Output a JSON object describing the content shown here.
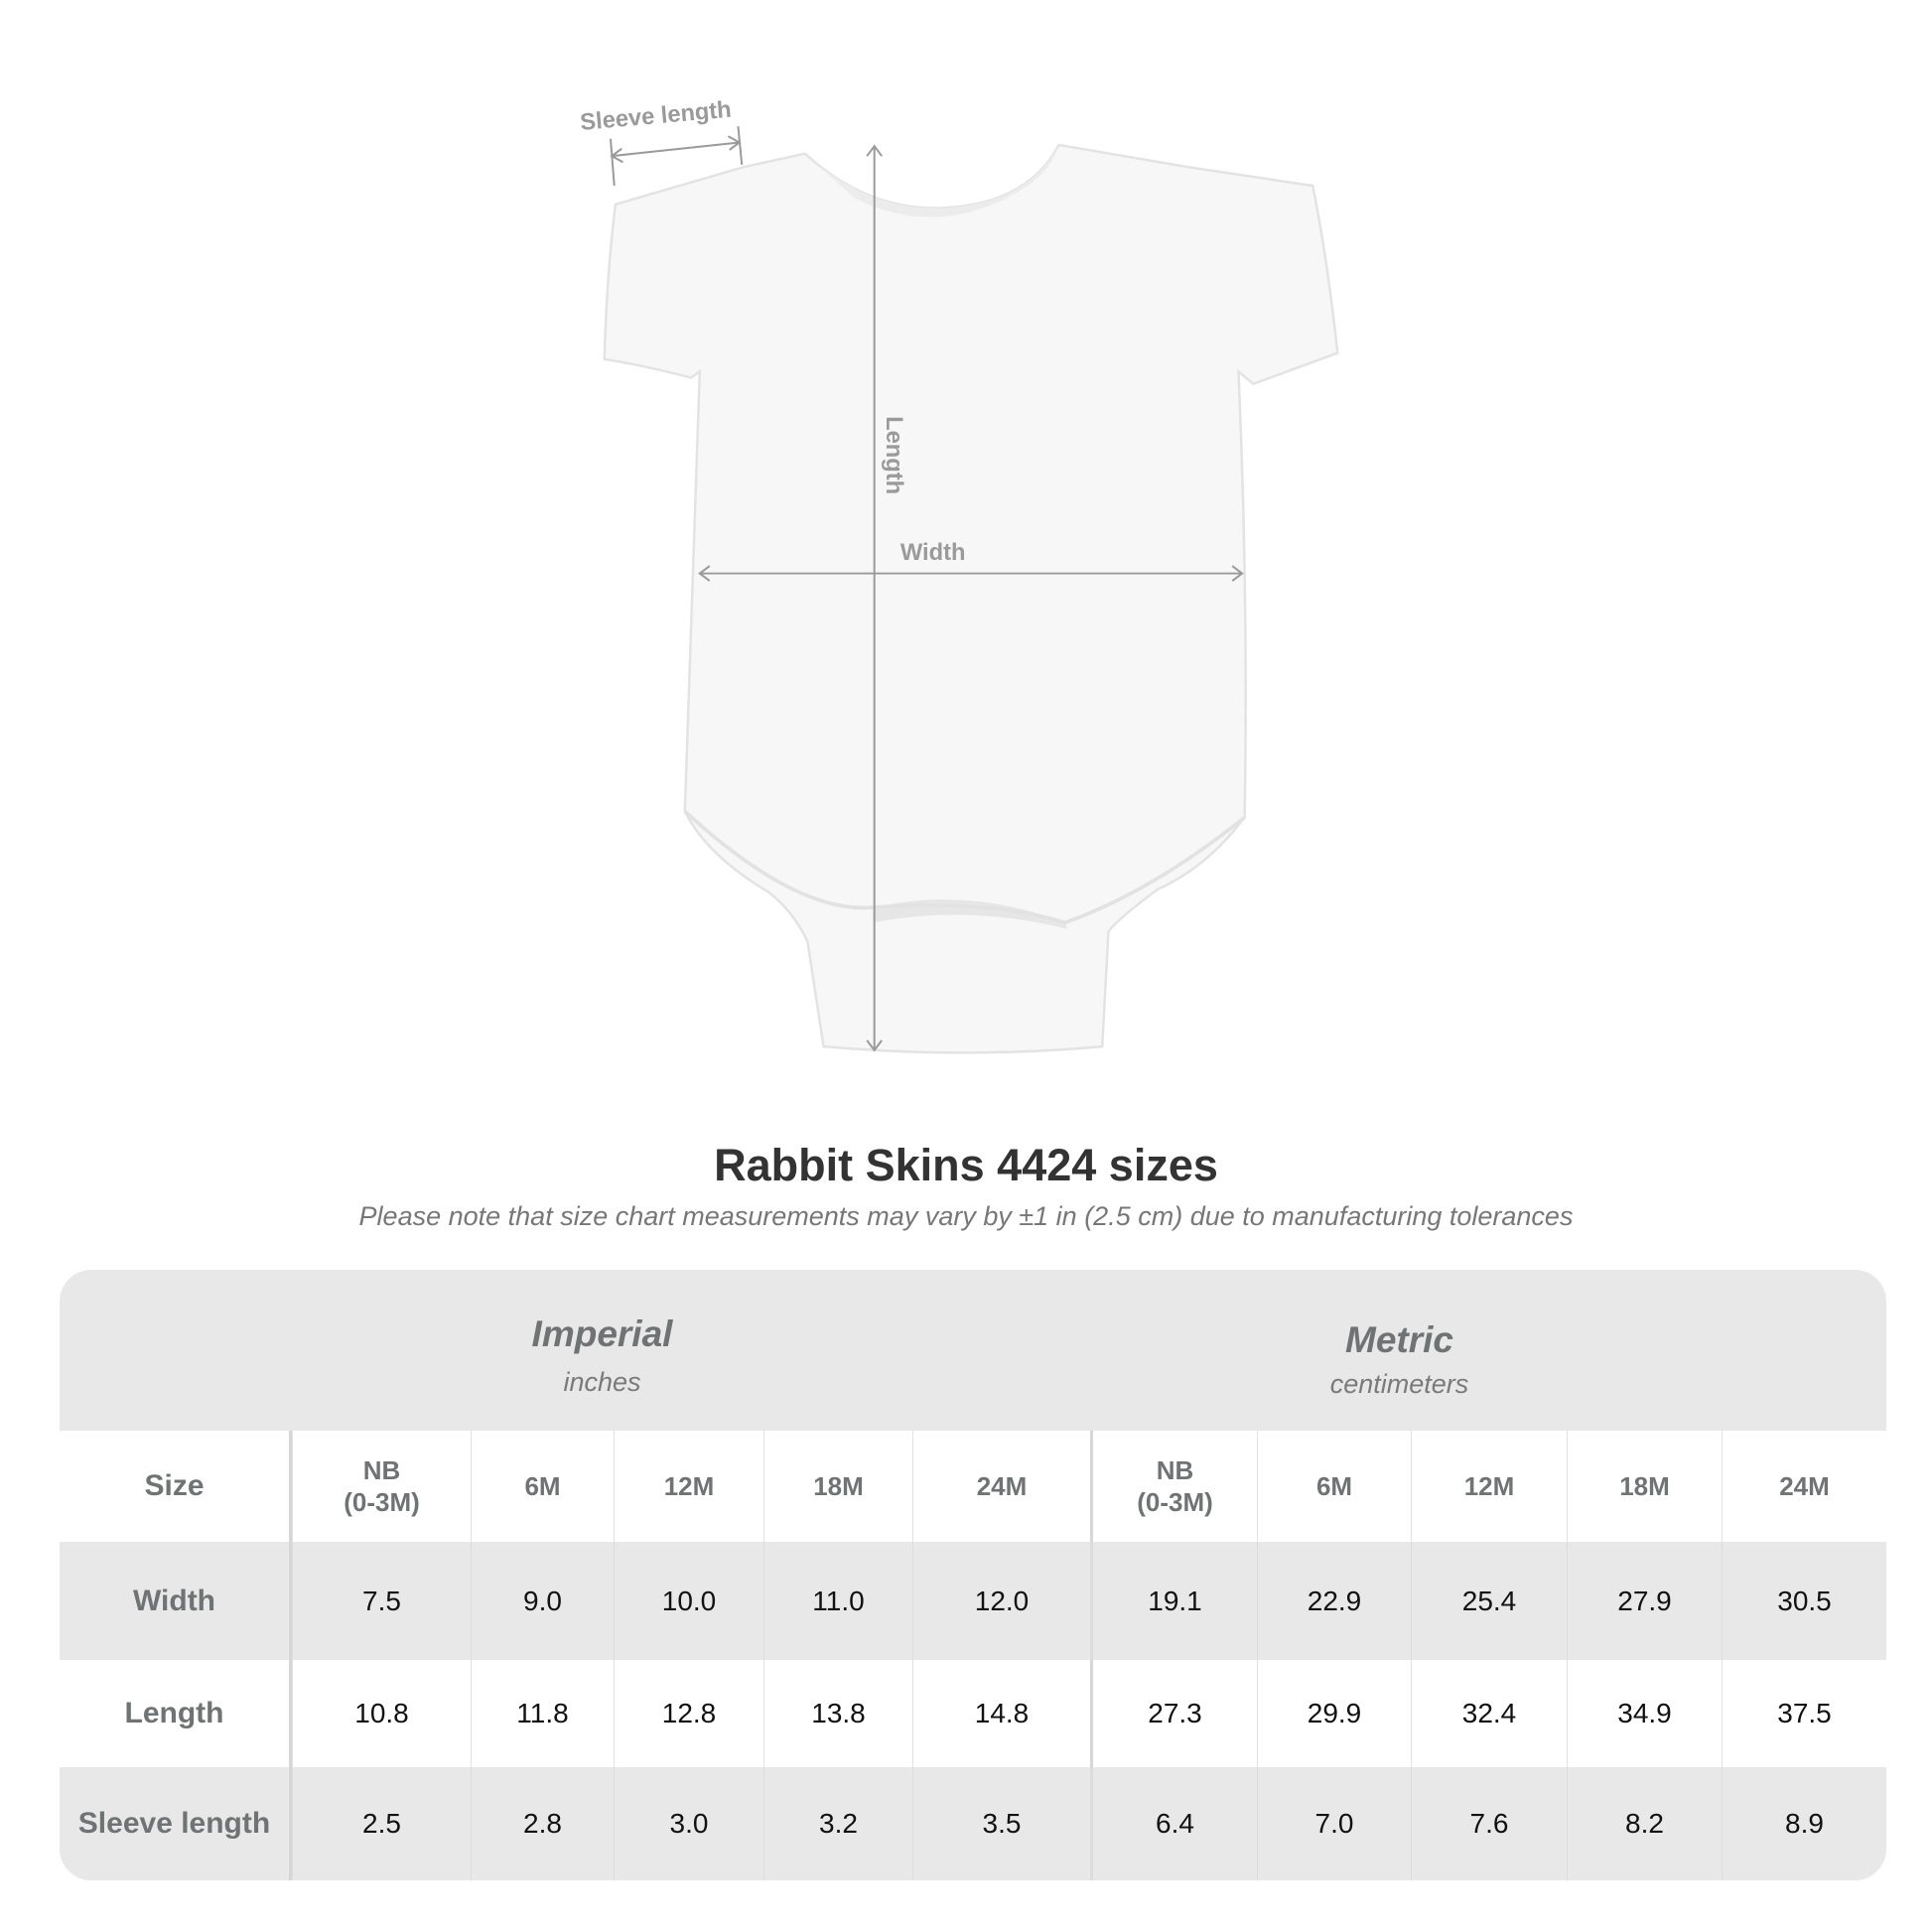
{
  "diagram": {
    "labels": {
      "sleeve": "Sleeve length",
      "length": "Length",
      "width": "Width"
    }
  },
  "title": "Rabbit Skins 4424 sizes",
  "note": "Please note that size chart measurements may vary by ±1 in (2.5 cm) due to manufacturing tolerances",
  "table": {
    "imperial": {
      "title": "Imperial",
      "unit": "inches"
    },
    "metric": {
      "title": "Metric",
      "unit": "centimeters"
    },
    "size_label": "Size",
    "sizes": [
      "NB\n(0-3M)",
      "6M",
      "12M",
      "18M",
      "24M"
    ],
    "rows": [
      {
        "label": "Width",
        "imperial": [
          "7.5",
          "9.0",
          "10.0",
          "11.0",
          "12.0"
        ],
        "metric": [
          "19.1",
          "22.9",
          "25.4",
          "27.9",
          "30.5"
        ]
      },
      {
        "label": "Length",
        "imperial": [
          "10.8",
          "11.8",
          "12.8",
          "13.8",
          "14.8"
        ],
        "metric": [
          "27.3",
          "29.9",
          "32.4",
          "34.9",
          "37.5"
        ]
      },
      {
        "label": "Sleeve length",
        "imperial": [
          "2.5",
          "2.8",
          "3.0",
          "3.2",
          "3.5"
        ],
        "metric": [
          "6.4",
          "7.0",
          "7.6",
          "8.2",
          "8.9"
        ]
      }
    ]
  }
}
